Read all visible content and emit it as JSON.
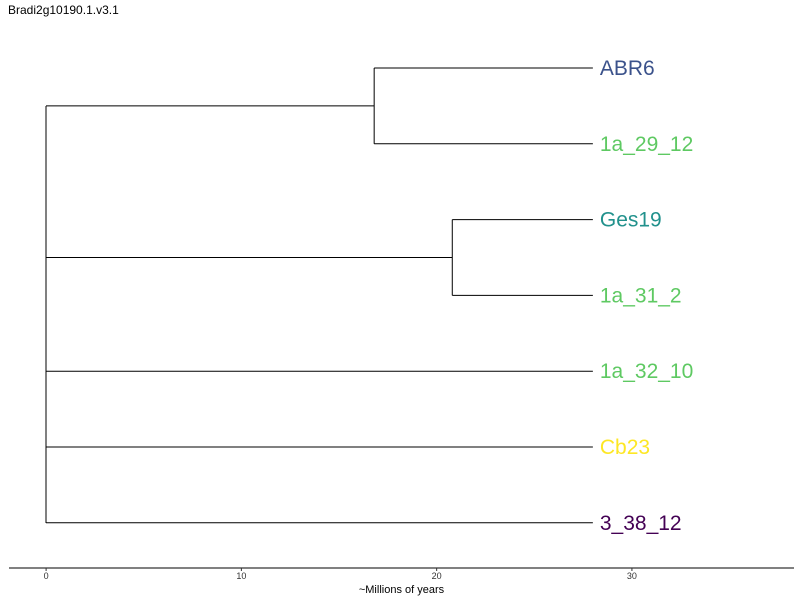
{
  "title": "Bradi2g10190.1.v3.1",
  "xlabel": "~Millions of years",
  "chart_data": {
    "type": "tree",
    "title": "Bradi2g10190.1.v3.1",
    "xlabel": "~Millions of years",
    "xlim": [
      -1.9,
      38.3
    ],
    "ticks": [
      0,
      10,
      20,
      30
    ],
    "tips": [
      {
        "label": "ABR6",
        "color": "#3b528b"
      },
      {
        "label": "1a_29_12",
        "color": "#5ec962"
      },
      {
        "label": "Ges19",
        "color": "#21918c"
      },
      {
        "label": "1a_31_2",
        "color": "#5ec962"
      },
      {
        "label": "1a_32_10",
        "color": "#5ec962"
      },
      {
        "label": "Cb23",
        "color": "#fde725"
      },
      {
        "label": "3_38_12",
        "color": "#440154"
      }
    ],
    "tip_depth": 28,
    "clades": [
      {
        "node_age": 16.8,
        "tips": [
          0,
          1
        ]
      },
      {
        "node_age": 20.8,
        "tips": [
          2,
          3
        ]
      }
    ]
  }
}
